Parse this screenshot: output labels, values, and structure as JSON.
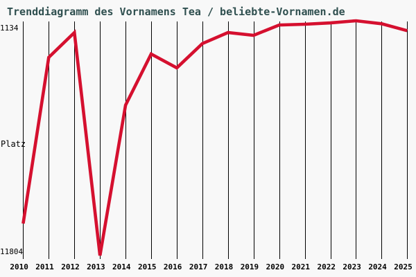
{
  "chart_data": {
    "type": "line",
    "title": "Trenddiagramm des Vornamens Tea / beliebte-Vornamen.de",
    "source_site": "beliebte-Vornamen.de",
    "name": "Tea",
    "xlabel": "",
    "ylabel": "Platz",
    "y_axis": {
      "top_label": "1134",
      "bottom_label": "11804",
      "min": 1134,
      "max": 11804,
      "inverted": true
    },
    "x": [
      2010,
      2011,
      2012,
      2013,
      2014,
      2015,
      2016,
      2017,
      2018,
      2019,
      2020,
      2021,
      2022,
      2023,
      2024,
      2025
    ],
    "series": [
      {
        "name": "Tea",
        "values": [
          10350,
          2800,
          1670,
          11804,
          4970,
          2645,
          3275,
          2170,
          1670,
          1795,
          1325,
          1290,
          1230,
          1134,
          1270,
          1585
        ]
      }
    ],
    "legend": "none",
    "grid": "vertical-only",
    "colors": {
      "line": "#D5102F",
      "title_text": "#2F4F4F",
      "axis_text": "#000000",
      "gridline": "#000000",
      "background": "#F8F8F8"
    }
  }
}
